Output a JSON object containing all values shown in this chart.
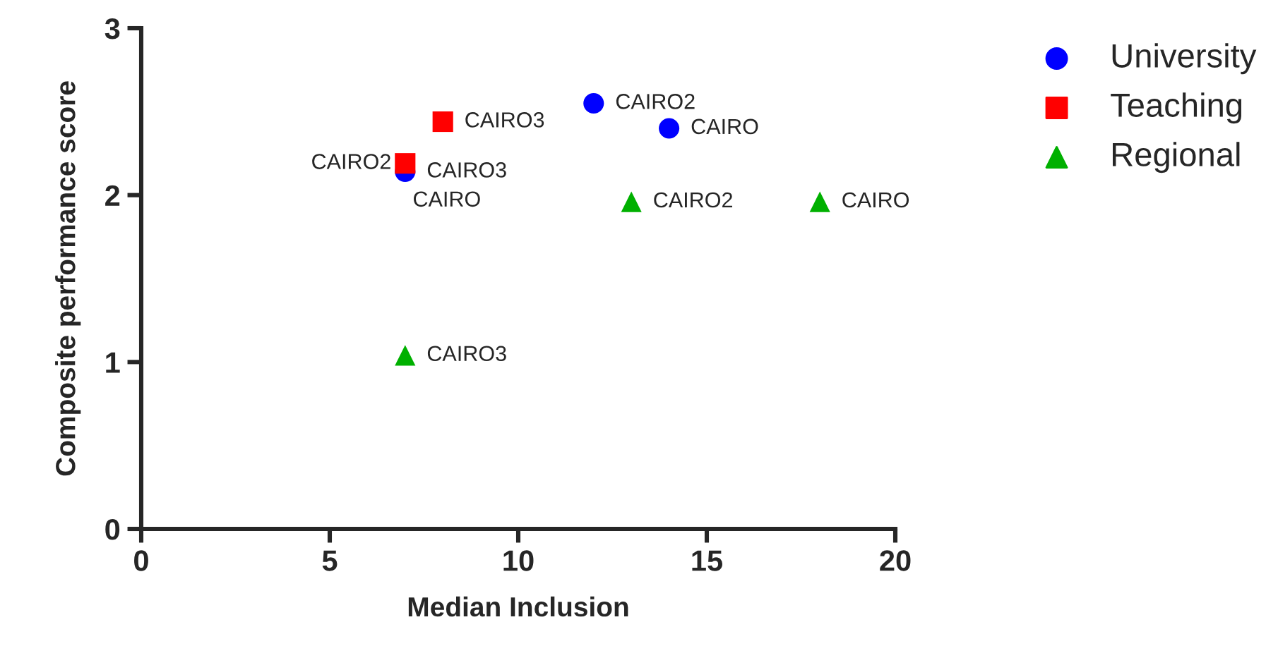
{
  "chart_data": {
    "type": "scatter",
    "xlabel": "Median Inclusion",
    "ylabel": "Composite performance score",
    "xlim": [
      0,
      20
    ],
    "xticks": [
      0,
      5,
      10,
      15,
      20
    ],
    "ylim": [
      0,
      3
    ],
    "yticks": [
      0,
      1,
      2,
      3
    ],
    "grid": false,
    "legend": "top right",
    "series": [
      {
        "name": "University",
        "color": "#0000ff",
        "marker": "circle",
        "x": [
          12,
          14,
          7
        ],
        "values": [
          2.55,
          2.4,
          2.14
        ],
        "value_labels": [
          "CAIRO2",
          "CAIRO",
          "CAIRO3"
        ]
      },
      {
        "name": "Teaching",
        "color": "#ff0000",
        "marker": "square",
        "x": [
          8,
          7
        ],
        "values": [
          2.44,
          2.19
        ],
        "value_labels": [
          "CAIRO3",
          "CAIRO2"
        ]
      },
      {
        "name": "Regional",
        "color": "#00b000",
        "marker": "triangle",
        "x": [
          13,
          18,
          7
        ],
        "values": [
          1.96,
          1.96,
          1.04
        ],
        "value_labels": [
          "CAIRO2",
          "CAIRO",
          "CAIRO3"
        ]
      }
    ],
    "annotations": [
      "CAIRO"
    ]
  }
}
